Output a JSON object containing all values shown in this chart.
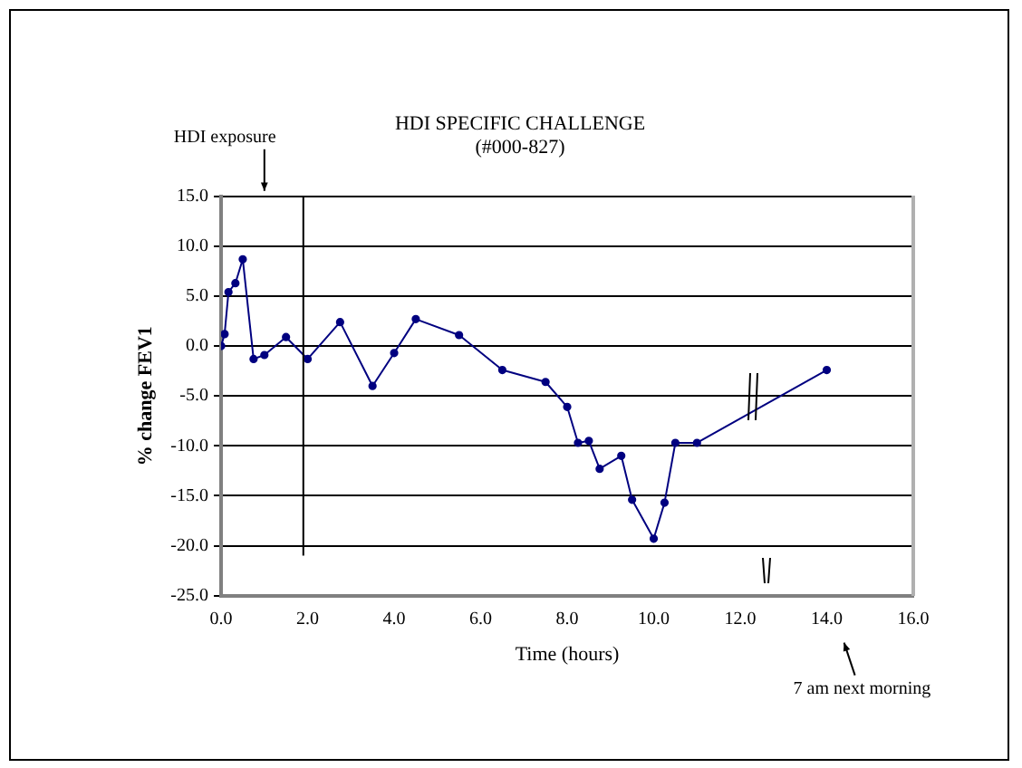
{
  "chart_data": {
    "type": "line",
    "title": "HDI SPECIFIC CHALLENGE",
    "subtitle": "(#000-827)",
    "xlabel": "Time (hours)",
    "ylabel": "% change FEV1",
    "x": [
      0,
      0.08,
      0.17,
      0.33,
      0.5,
      0.75,
      1,
      1.5,
      2,
      2.75,
      3.5,
      4,
      4.5,
      5.5,
      6.5,
      7.5,
      8,
      8.25,
      8.5,
      8.75,
      9.25,
      9.5,
      10,
      10.25,
      10.5,
      11,
      14
    ],
    "series": [
      {
        "color": "#000080",
        "values": [
          0,
          1.2,
          5.4,
          6.3,
          8.7,
          -1.3,
          -0.9,
          0.9,
          -1.3,
          2.4,
          -4,
          -0.7,
          2.7,
          1.1,
          -2.4,
          -3.6,
          -6.1,
          -9.7,
          -9.5,
          -12.3,
          -11,
          -15.4,
          -19.3,
          -15.7,
          -9.7,
          -9.7,
          -2.4
        ]
      }
    ],
    "xlim": [
      0,
      16
    ],
    "xticks": [
      {
        "value": 0,
        "label": "0.0"
      },
      {
        "value": 2,
        "label": "2.0"
      },
      {
        "value": 4,
        "label": "4.0"
      },
      {
        "value": 6,
        "label": "6.0"
      },
      {
        "value": 8,
        "label": "8.0"
      },
      {
        "value": 10,
        "label": "10.0"
      },
      {
        "value": 12,
        "label": "12.0"
      },
      {
        "value": 14,
        "label": "14.0"
      },
      {
        "value": 16,
        "label": "16.0"
      }
    ],
    "ylim": [
      -25,
      15
    ],
    "yticks": [
      {
        "value": -25,
        "label": "-25.0"
      },
      {
        "value": -20,
        "label": "-20.0"
      },
      {
        "value": -15,
        "label": "-15.0"
      },
      {
        "value": -10,
        "label": "-10.0"
      },
      {
        "value": -5,
        "label": "-5.0"
      },
      {
        "value": 0,
        "label": "0.0"
      },
      {
        "value": 5,
        "label": "5.0"
      },
      {
        "value": 10,
        "label": "10.0"
      },
      {
        "value": 15,
        "label": "15.0"
      }
    ],
    "grid": "y",
    "marker": "circle",
    "line_style": "solid",
    "legend": false,
    "ref_lines": [
      {
        "axis": "x",
        "value": 1.9,
        "color": "#000000"
      }
    ],
    "annotations": [
      "HDI exposure",
      "7 am next morning"
    ]
  }
}
